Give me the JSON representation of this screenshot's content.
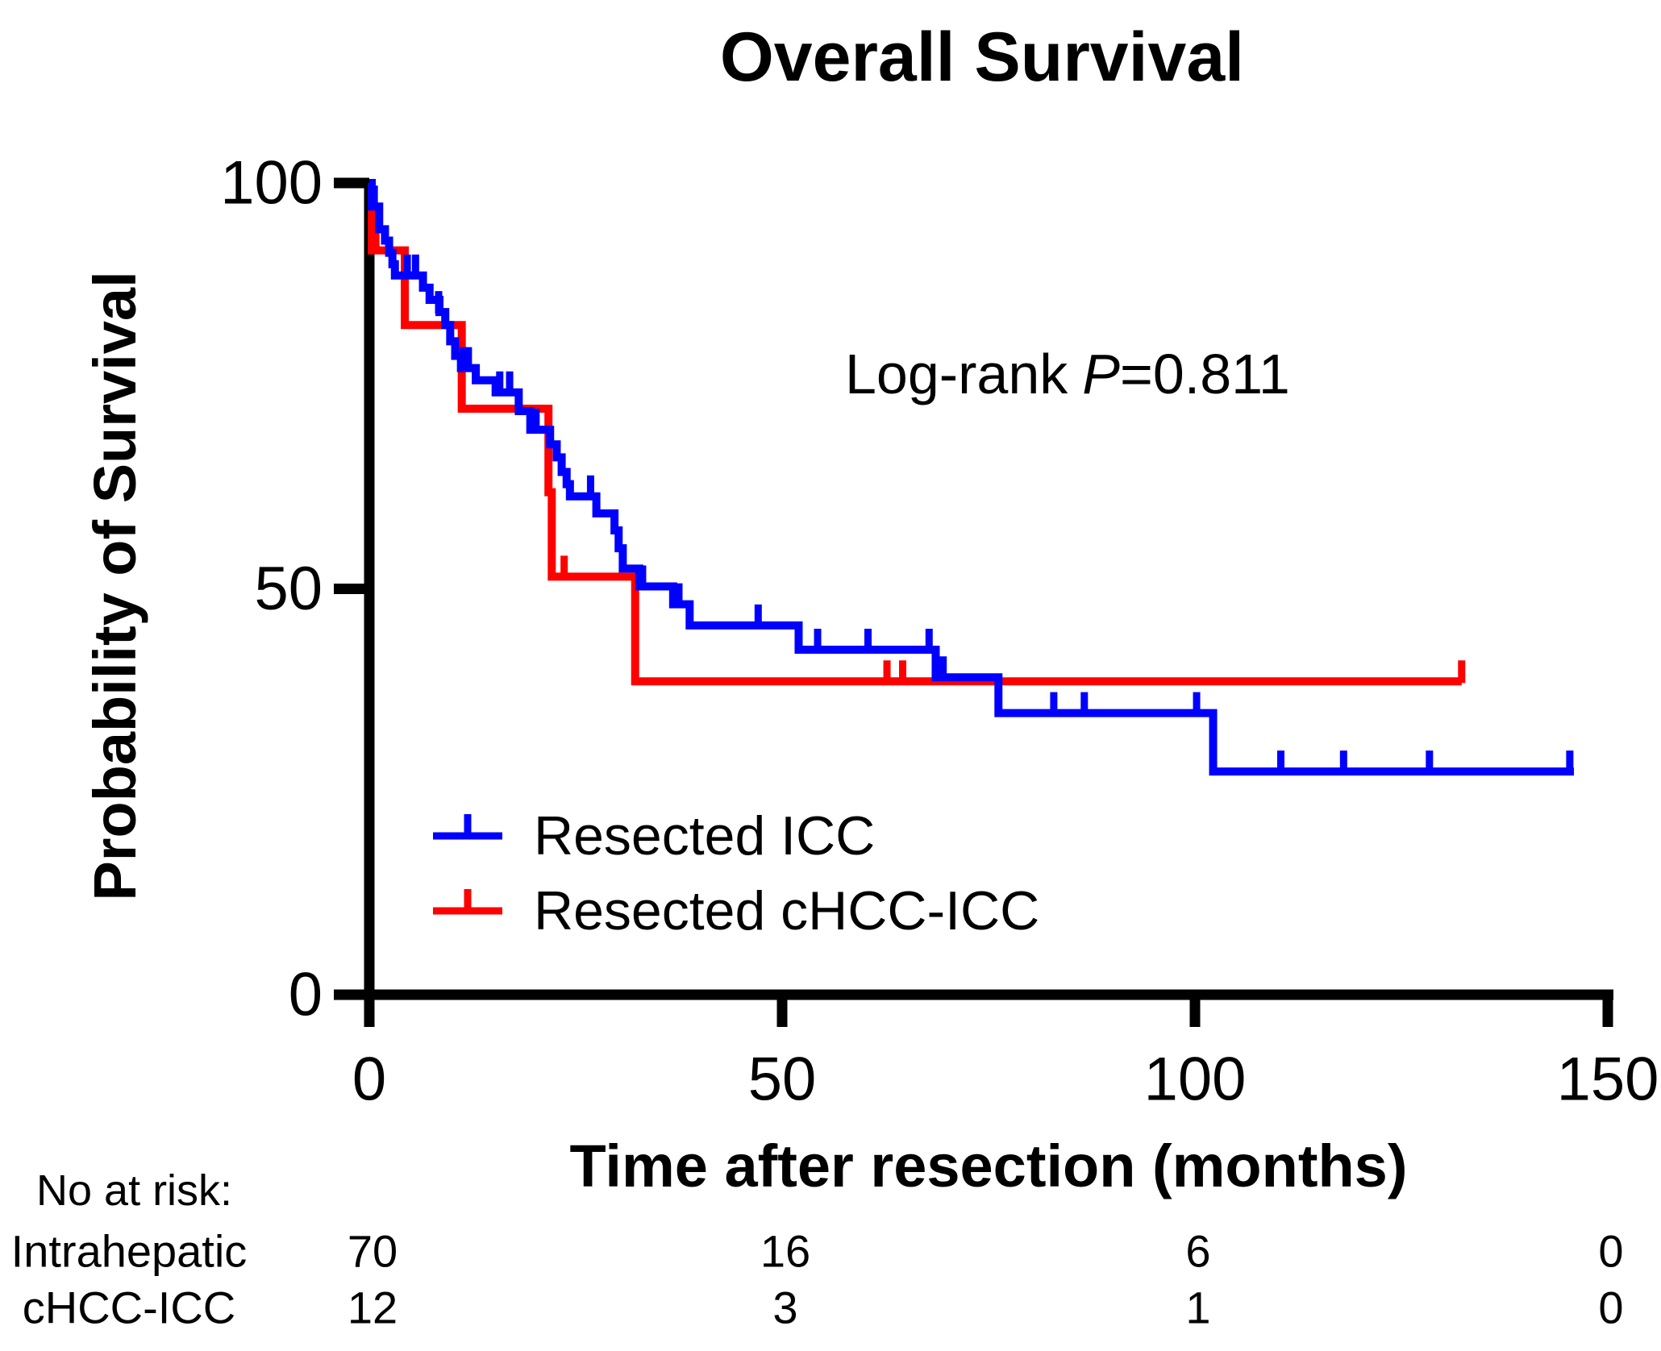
{
  "title": "Overall Survival",
  "annotation": {
    "prefix": "Log-rank",
    "p": "P",
    "suffix": "=0.811",
    "text": "Log-rank P=0.811"
  },
  "axes": {
    "x": {
      "label": "Time after resection (months)",
      "ticks": [
        "0",
        "50",
        "100",
        "150"
      ],
      "range": [
        0,
        150
      ]
    },
    "y": {
      "label": "Probability of Survival",
      "ticks": [
        "100",
        "50",
        "0"
      ],
      "tick_values": [
        100,
        50,
        0
      ],
      "range": [
        0,
        100
      ]
    }
  },
  "legend": {
    "items": [
      {
        "label": "Resected ICC",
        "color": "#0000fe"
      },
      {
        "label": "Resected cHCC-ICC",
        "color": "#fe0000"
      }
    ]
  },
  "risk_table": {
    "heading": "No at risk:",
    "columns": [
      0,
      50,
      100,
      150
    ],
    "rows": [
      {
        "label": "Intrahepatic",
        "values": [
          "70",
          "16",
          "6",
          "0"
        ]
      },
      {
        "label": "cHCC-ICC",
        "values": [
          "12",
          "3",
          "1",
          "0"
        ]
      }
    ]
  },
  "chart_data": {
    "type": "line",
    "subtype": "kaplan-meier-step",
    "title": "Overall Survival",
    "xlabel": "Time after resection (months)",
    "ylabel": "Probability of Survival",
    "xlim": [
      0,
      150
    ],
    "ylim": [
      0,
      100
    ],
    "xticks": [
      0,
      50,
      100,
      150
    ],
    "yticks": [
      0,
      50,
      100
    ],
    "grid": false,
    "legend_position": "lower-left-inside",
    "annotation": "Log-rank P=0.811",
    "series": [
      {
        "name": "Resected ICC",
        "color": "#0000fe",
        "steps": [
          [
            0,
            100
          ],
          [
            0.3,
            97.1
          ],
          [
            1.2,
            94.3
          ],
          [
            1.9,
            92.9
          ],
          [
            2.4,
            91.4
          ],
          [
            2.8,
            90.0
          ],
          [
            3.1,
            88.6
          ],
          [
            6.5,
            87.1
          ],
          [
            7.3,
            85.6
          ],
          [
            8.5,
            84.1
          ],
          [
            9.2,
            82.5
          ],
          [
            9.8,
            80.5
          ],
          [
            10.4,
            78.7
          ],
          [
            11.1,
            77.2
          ],
          [
            12.9,
            75.7
          ],
          [
            15.3,
            74.2
          ],
          [
            18.1,
            71.9
          ],
          [
            19.5,
            69.6
          ],
          [
            21.9,
            67.8
          ],
          [
            22.7,
            66.2
          ],
          [
            23.3,
            64.4
          ],
          [
            23.9,
            62.9
          ],
          [
            24.3,
            61.4
          ],
          [
            27.5,
            59.3
          ],
          [
            29.7,
            57.2
          ],
          [
            30.2,
            55.0
          ],
          [
            30.7,
            52.5
          ],
          [
            32.7,
            50.3
          ],
          [
            36.8,
            48.1
          ],
          [
            38.8,
            45.5
          ],
          [
            52.0,
            42.5
          ],
          [
            68.6,
            39.1
          ],
          [
            76.2,
            34.7
          ],
          [
            102.2,
            27.5
          ]
        ],
        "end_time": 145.9,
        "censors": [
          [
            0.6,
            97.1
          ],
          [
            4.6,
            88.6
          ],
          [
            5.6,
            88.6
          ],
          [
            8.4,
            84.1
          ],
          [
            11.4,
            77.2
          ],
          [
            12.0,
            77.2
          ],
          [
            15.8,
            74.2
          ],
          [
            17.0,
            74.2
          ],
          [
            20.2,
            69.6
          ],
          [
            26.8,
            61.4
          ],
          [
            33.1,
            50.3
          ],
          [
            37.5,
            48.1
          ],
          [
            47.1,
            45.5
          ],
          [
            54.3,
            42.5
          ],
          [
            60.4,
            42.5
          ],
          [
            67.8,
            42.5
          ],
          [
            69.5,
            39.1
          ],
          [
            82.9,
            34.7
          ],
          [
            86.6,
            34.7
          ],
          [
            100.2,
            34.7
          ],
          [
            110.4,
            27.5
          ],
          [
            118.0,
            27.5
          ],
          [
            128.4,
            27.5
          ],
          [
            145.4,
            27.5
          ]
        ]
      },
      {
        "name": "Resected cHCC-ICC",
        "color": "#fe0000",
        "steps": [
          [
            0,
            100
          ],
          [
            0.3,
            91.7
          ],
          [
            4.3,
            82.5
          ],
          [
            11.2,
            72.2
          ],
          [
            21.7,
            61.9
          ],
          [
            22.1,
            51.5
          ],
          [
            32.2,
            38.6
          ]
        ],
        "end_time": 132.3,
        "censors": [
          [
            0.8,
            91.7
          ],
          [
            23.6,
            51.5
          ],
          [
            62.7,
            38.6
          ],
          [
            64.6,
            38.6
          ],
          [
            132.3,
            38.6
          ]
        ]
      }
    ],
    "at_risk": {
      "times": [
        0,
        50,
        100,
        150
      ],
      "groups": [
        {
          "name": "Intrahepatic",
          "counts": [
            70,
            16,
            6,
            0
          ]
        },
        {
          "name": "cHCC-ICC",
          "counts": [
            12,
            3,
            1,
            0
          ]
        }
      ]
    }
  }
}
